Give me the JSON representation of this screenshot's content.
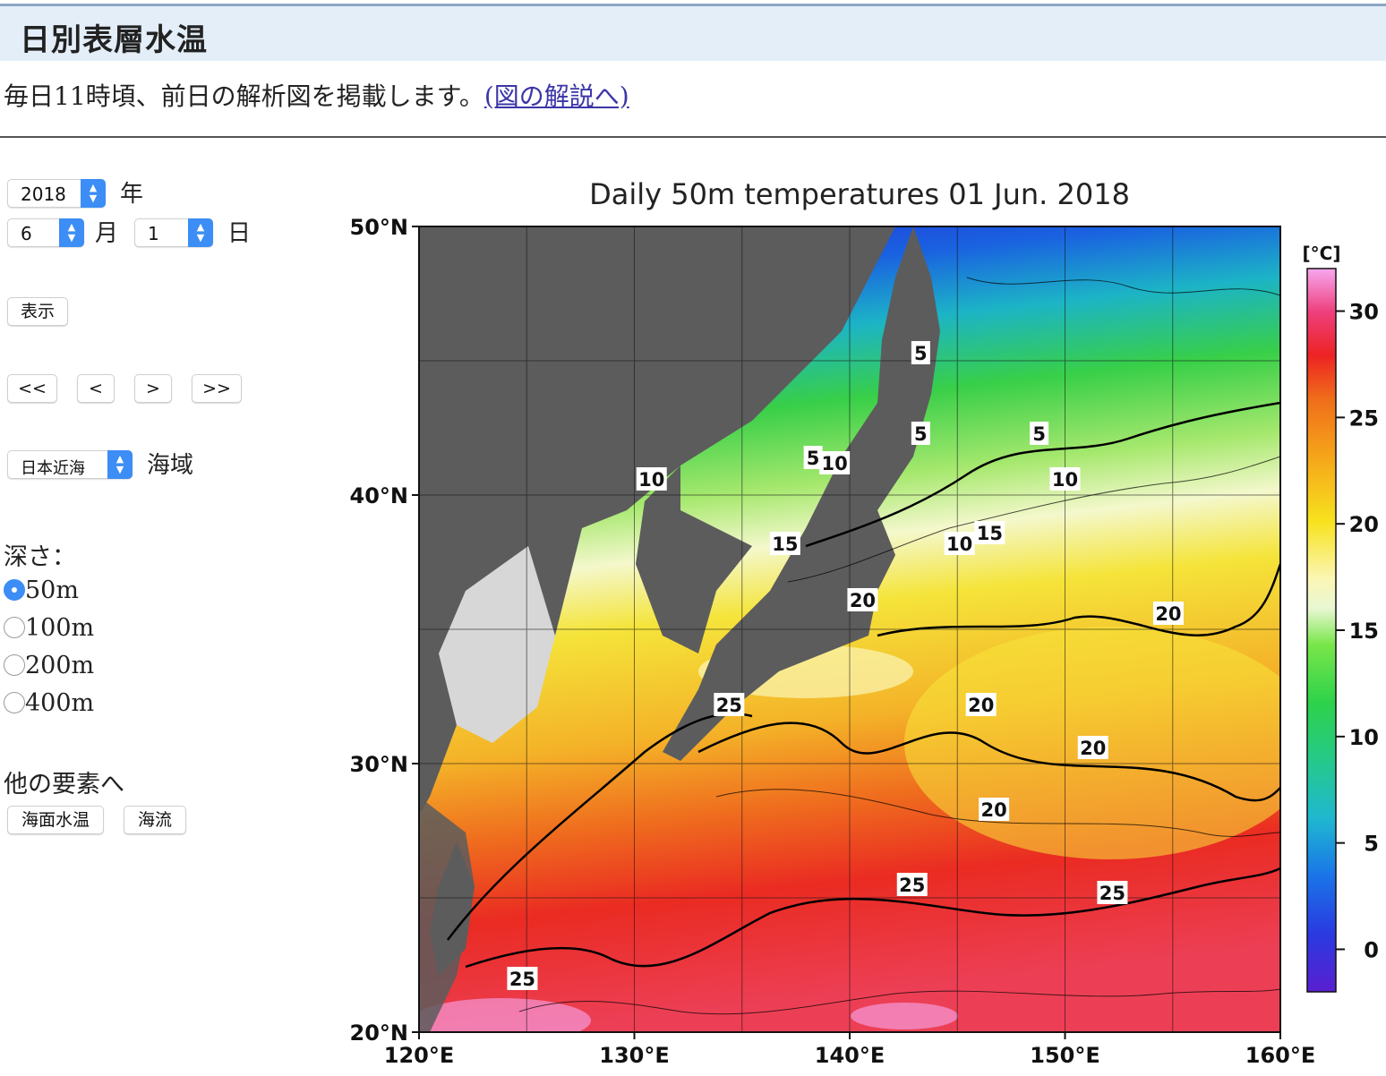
{
  "page": {
    "title": "日別表層水温",
    "lead_text": "毎日11時頃、前日の解析図を掲載します。",
    "lead_link": "(図の解説へ)"
  },
  "controls": {
    "year": "2018",
    "year_unit": "年",
    "month": "6",
    "month_unit": "月",
    "day": "1",
    "day_unit": "日",
    "show_button": "表示",
    "nav": [
      "<<",
      "<",
      ">",
      ">>"
    ],
    "region": "日本近海",
    "region_unit": "海域",
    "depth_label": "深さ：",
    "depths": [
      {
        "label": "50m",
        "selected": true
      },
      {
        "label": "100m",
        "selected": false
      },
      {
        "label": "200m",
        "selected": false
      },
      {
        "label": "400m",
        "selected": false
      }
    ],
    "other_label": "他の要素へ",
    "other_buttons": [
      "海面水温",
      "海流"
    ]
  },
  "chart_data": {
    "type": "heatmap",
    "title": "Daily 50m temperatures 01 Jun. 2018",
    "xlabel": "",
    "ylabel": "",
    "x_ticks": [
      "120°E",
      "130°E",
      "140°E",
      "150°E",
      "160°E"
    ],
    "y_ticks": [
      "50°N",
      "40°N",
      "30°N",
      "20°N"
    ],
    "xlim": [
      120,
      160
    ],
    "ylim": [
      20,
      50
    ],
    "colorbar": {
      "unit": "[°C]",
      "ticks": [
        "30",
        "25",
        "20",
        "15",
        "10",
        "5",
        "0"
      ],
      "range": [
        -2,
        32
      ]
    },
    "contour_labels": [
      {
        "text": "5",
        "lon": 143.3,
        "lat": 45.3
      },
      {
        "text": "5",
        "lon": 143.3,
        "lat": 42.3
      },
      {
        "text": "5",
        "lon": 148.8,
        "lat": 42.3
      },
      {
        "text": "5",
        "lon": 138.3,
        "lat": 41.4
      },
      {
        "text": "10",
        "lon": 139.3,
        "lat": 41.2
      },
      {
        "text": "10",
        "lon": 130.8,
        "lat": 40.6
      },
      {
        "text": "10",
        "lon": 150.0,
        "lat": 40.6
      },
      {
        "text": "15",
        "lon": 137.0,
        "lat": 38.2
      },
      {
        "text": "15",
        "lon": 146.5,
        "lat": 38.6
      },
      {
        "text": "10",
        "lon": 145.1,
        "lat": 38.2
      },
      {
        "text": "20",
        "lon": 140.6,
        "lat": 36.1
      },
      {
        "text": "20",
        "lon": 154.8,
        "lat": 35.6
      },
      {
        "text": "25",
        "lon": 134.4,
        "lat": 32.2
      },
      {
        "text": "20",
        "lon": 146.1,
        "lat": 32.2
      },
      {
        "text": "20",
        "lon": 151.3,
        "lat": 30.6
      },
      {
        "text": "20",
        "lon": 146.7,
        "lat": 28.3
      },
      {
        "text": "25",
        "lon": 142.9,
        "lat": 25.5
      },
      {
        "text": "25",
        "lon": 152.2,
        "lat": 25.2
      },
      {
        "text": "25",
        "lon": 124.8,
        "lat": 22.0
      }
    ]
  }
}
